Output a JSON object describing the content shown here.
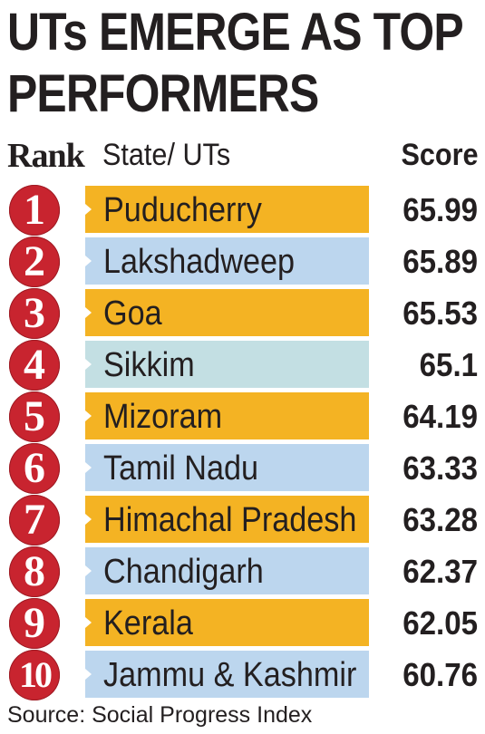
{
  "title_line1": "UTs EMERGE AS TOP",
  "title_line2": "PERFORMERS",
  "columns": {
    "rank": "Rank",
    "state": "State/ UTs",
    "score": "Score"
  },
  "rows": [
    {
      "rank": "1",
      "state": "Puducherry",
      "score": "65.99",
      "color": "orange"
    },
    {
      "rank": "2",
      "state": "Lakshadweep",
      "score": "65.89",
      "color": "blue"
    },
    {
      "rank": "3",
      "state": "Goa",
      "score": "65.53",
      "color": "orange"
    },
    {
      "rank": "4",
      "state": "Sikkim",
      "score": "65.1",
      "color": "teal"
    },
    {
      "rank": "5",
      "state": "Mizoram",
      "score": "64.19",
      "color": "orange"
    },
    {
      "rank": "6",
      "state": "Tamil Nadu",
      "score": "63.33",
      "color": "blue"
    },
    {
      "rank": "7",
      "state": "Himachal Pradesh",
      "score": "63.28",
      "color": "orange"
    },
    {
      "rank": "8",
      "state": "Chandigarh",
      "score": "62.37",
      "color": "blue"
    },
    {
      "rank": "9",
      "state": "Kerala",
      "score": "62.05",
      "color": "orange"
    },
    {
      "rank": "10",
      "state": "Jammu & Kashmir",
      "score": "60.76",
      "color": "blue"
    }
  ],
  "colors": {
    "badge_red": "#c8242f",
    "bar_orange": "#f4b323",
    "bar_blue": "#bcd6ee",
    "bar_teal": "#c3dfe3"
  },
  "source": "Source: Social Progress Index"
}
